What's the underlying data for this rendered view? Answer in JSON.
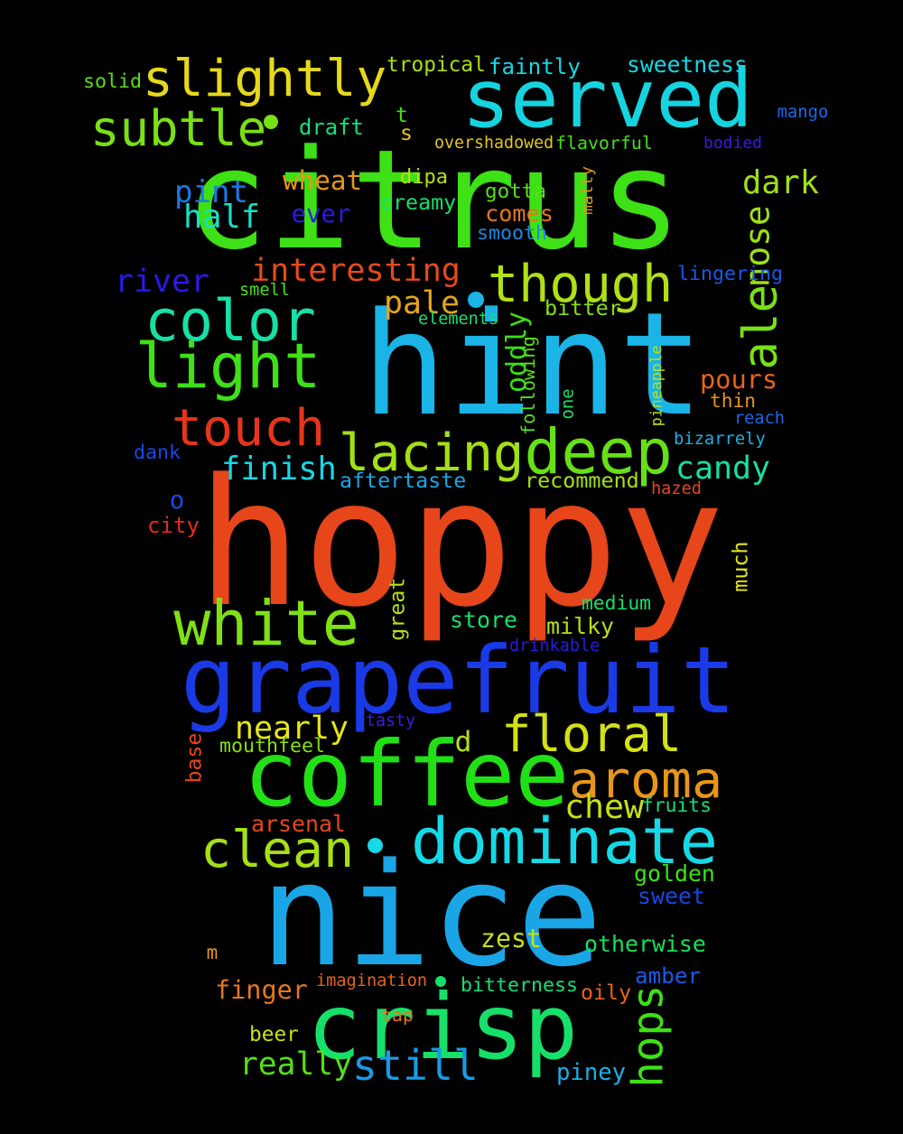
{
  "background": "#000000",
  "words": [
    {
      "id": "citrus",
      "text": "citrus",
      "color": "#3ee016"
    },
    {
      "id": "hint",
      "text": "hint",
      "color": "#1ab4e6"
    },
    {
      "id": "hoppy",
      "text": "hoppy",
      "color": "#e6461a"
    },
    {
      "id": "nice",
      "text": "nice",
      "color": "#1aa6e6"
    },
    {
      "id": "grapefruit",
      "text": "grapefruit",
      "color": "#1a3ae6"
    },
    {
      "id": "served",
      "text": "served",
      "color": "#16d3e0"
    },
    {
      "id": "coffee",
      "text": "coffee",
      "color": "#22e016"
    },
    {
      "id": "crisp",
      "text": "crisp",
      "color": "#16e06a"
    },
    {
      "id": "dominate",
      "text": "dominate",
      "color": "#16d8e6"
    },
    {
      "id": "white",
      "text": "white",
      "color": "#80e016"
    },
    {
      "id": "slightly",
      "text": "slightly",
      "color": "#e6d81a"
    },
    {
      "id": "color",
      "text": "color",
      "color": "#16e0a6"
    },
    {
      "id": "light",
      "text": "light",
      "color": "#3ee016"
    },
    {
      "id": "touch",
      "text": "touch",
      "color": "#e6351a"
    },
    {
      "id": "lacing",
      "text": "lacing",
      "color": "#a2e016"
    },
    {
      "id": "deep",
      "text": "deep",
      "color": "#66e016"
    },
    {
      "id": "floral",
      "text": "floral",
      "color": "#d2e016"
    },
    {
      "id": "aroma",
      "text": "aroma",
      "color": "#e6961a"
    },
    {
      "id": "clean",
      "text": "clean",
      "color": "#a6e016"
    },
    {
      "id": "though",
      "text": "though",
      "color": "#b0e016"
    },
    {
      "id": "subtle",
      "text": "subtle",
      "color": "#7ae016"
    },
    {
      "id": "ale",
      "text": "ale",
      "color": "#78e016"
    },
    {
      "id": "still",
      "text": "still",
      "color": "#1a9ae6"
    },
    {
      "id": "hops",
      "text": "hops",
      "color": "#3ee016"
    },
    {
      "id": "finish",
      "text": "finish",
      "color": "#16d8e6"
    },
    {
      "id": "candy",
      "text": "candy",
      "color": "#16e0a0"
    },
    {
      "id": "nearly",
      "text": "nearly",
      "color": "#e6e61a"
    },
    {
      "id": "chew",
      "text": "chew",
      "color": "#c6e016"
    },
    {
      "id": "really",
      "text": "really",
      "color": "#56e016"
    },
    {
      "id": "dark",
      "text": "dark",
      "color": "#a2e016"
    },
    {
      "id": "pint",
      "text": "pint",
      "color": "#1a78e6"
    },
    {
      "id": "half",
      "text": "half",
      "color": "#16e0c6"
    },
    {
      "id": "river",
      "text": "river",
      "color": "#2a1ae6"
    },
    {
      "id": "interesting",
      "text": "interesting",
      "color": "#e64a1a"
    },
    {
      "id": "pale",
      "text": "pale",
      "color": "#e6a61a"
    },
    {
      "id": "nose",
      "text": "nose",
      "color": "#9ee016"
    },
    {
      "id": "oddly",
      "text": "oddly",
      "color": "#3ae016"
    },
    {
      "id": "wheat",
      "text": "wheat",
      "color": "#e6961a"
    },
    {
      "id": "pours",
      "text": "pours",
      "color": "#e6641a"
    },
    {
      "id": "zest",
      "text": "zest",
      "color": "#c6e016"
    },
    {
      "id": "finger",
      "text": "finger",
      "color": "#e6781a"
    },
    {
      "id": "otherwise",
      "text": "otherwise",
      "color": "#16e05a"
    },
    {
      "id": "golden",
      "text": "golden",
      "color": "#3ee016"
    },
    {
      "id": "sweet",
      "text": "sweet",
      "color": "#1a46e6"
    },
    {
      "id": "amber",
      "text": "amber",
      "color": "#1a5ae6"
    },
    {
      "id": "oily",
      "text": "oily",
      "color": "#e6641a"
    },
    {
      "id": "bitterness",
      "text": "bitterness",
      "color": "#16e07a"
    },
    {
      "id": "arsenal",
      "text": "arsenal",
      "color": "#e6461a"
    },
    {
      "id": "recommend",
      "text": "recommend",
      "color": "#a6e016"
    },
    {
      "id": "aftertaste",
      "text": "aftertaste",
      "color": "#1aa6e6"
    },
    {
      "id": "store",
      "text": "store",
      "color": "#16e06a"
    },
    {
      "id": "milky",
      "text": "milky",
      "color": "#b6e016"
    },
    {
      "id": "medium",
      "text": "medium",
      "color": "#16e06a"
    },
    {
      "id": "beer",
      "text": "beer",
      "color": "#c6e016"
    },
    {
      "id": "piney",
      "text": "piney",
      "color": "#1ab0e6"
    },
    {
      "id": "sweetness",
      "text": "sweetness",
      "color": "#16d8e6"
    },
    {
      "id": "tropical",
      "text": "tropical",
      "color": "#a6e016"
    },
    {
      "id": "faintly",
      "text": "faintly",
      "color": "#16d8e6"
    },
    {
      "id": "mouthfeel",
      "text": "mouthfeel",
      "color": "#86e016"
    },
    {
      "id": "great",
      "text": "great",
      "color": "#b6e016"
    },
    {
      "id": "much",
      "text": "much",
      "color": "#e6e61a"
    },
    {
      "id": "d",
      "text": "d",
      "color": "#b6e016"
    },
    {
      "id": "fruits",
      "text": "fruits",
      "color": "#16e07a"
    },
    {
      "id": "creamy",
      "text": "creamy",
      "color": "#16e06a"
    },
    {
      "id": "comes",
      "text": "comes",
      "color": "#e6781a"
    },
    {
      "id": "gotta",
      "text": "gotta",
      "color": "#56e016"
    },
    {
      "id": "ever",
      "text": "ever",
      "color": "#2a1ae6"
    },
    {
      "id": "smooth",
      "text": "smooth",
      "color": "#1a8ae6"
    },
    {
      "id": "bitter",
      "text": "bitter",
      "color": "#86e016"
    },
    {
      "id": "draft",
      "text": "draft",
      "color": "#16e07a"
    },
    {
      "id": "dipa",
      "text": "dipa",
      "color": "#b6e016"
    },
    {
      "id": "solid",
      "text": "solid",
      "color": "#56e016"
    },
    {
      "id": "t",
      "text": "t",
      "color": "#46e016"
    },
    {
      "id": "s",
      "text": "s",
      "color": "#e6c61a"
    },
    {
      "id": "flavorful",
      "text": "flavorful",
      "color": "#46e016"
    },
    {
      "id": "overshadowed",
      "text": "overshadowed",
      "color": "#e6c61a"
    },
    {
      "id": "mango",
      "text": "mango",
      "color": "#1a6ae6"
    },
    {
      "id": "bodied",
      "text": "bodied",
      "color": "#3a1ae6"
    },
    {
      "id": "malty",
      "text": "malty",
      "color": "#e6961a"
    },
    {
      "id": "lingering",
      "text": "lingering",
      "color": "#1a5ae6"
    },
    {
      "id": "smell",
      "text": "smell",
      "color": "#46e016"
    },
    {
      "id": "elements",
      "text": "elements",
      "color": "#16e06a"
    },
    {
      "id": "following",
      "text": "following",
      "color": "#56e016"
    },
    {
      "id": "one",
      "text": "one",
      "color": "#16e06a"
    },
    {
      "id": "pineapple",
      "text": "pineapple",
      "color": "#b6e016"
    },
    {
      "id": "thin",
      "text": "thin",
      "color": "#e6961a"
    },
    {
      "id": "reach",
      "text": "reach",
      "color": "#1a6ae6"
    },
    {
      "id": "bizarrely",
      "text": "bizarrely",
      "color": "#16b4e6"
    },
    {
      "id": "hazed",
      "text": "hazed",
      "color": "#e6461a"
    },
    {
      "id": "dank",
      "text": "dank",
      "color": "#1a46e6"
    },
    {
      "id": "o",
      "text": "o",
      "color": "#1a46e6"
    },
    {
      "id": "city",
      "text": "city",
      "color": "#e62a1a"
    },
    {
      "id": "drinkable",
      "text": "drinkable",
      "color": "#2a1ae6"
    },
    {
      "id": "tasty",
      "text": "tasty",
      "color": "#3a1ae6"
    },
    {
      "id": "base",
      "text": "base",
      "color": "#e6461a"
    },
    {
      "id": "m",
      "text": "m",
      "color": "#e6961a"
    },
    {
      "id": "imagination",
      "text": "imagination",
      "color": "#e6641a"
    },
    {
      "id": "tap",
      "text": "tap",
      "color": "#e6781a"
    }
  ],
  "dots": [
    {
      "id": "subtle-dot",
      "color": "#7ae016"
    },
    {
      "id": "pale-dot",
      "color": "#1ab4e6"
    },
    {
      "id": "clean-dot",
      "color": "#16d8e6"
    },
    {
      "id": "bitterness-dot",
      "color": "#16e06a"
    }
  ]
}
